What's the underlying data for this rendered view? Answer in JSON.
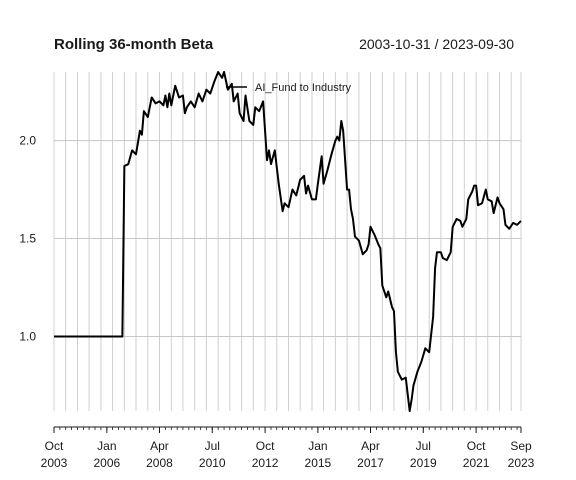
{
  "chart_data": {
    "type": "line",
    "title": "Rolling 36-month Beta",
    "date_range": "2003-10-31 / 2023-09-30",
    "xlabel": "",
    "ylabel": "",
    "xlim": [
      "2003-10-31",
      "2023-09-30"
    ],
    "ylim": [
      0.62,
      2.35
    ],
    "grid": true,
    "legend_position": "top-center",
    "y_ticks": [
      1.0,
      1.5,
      2.0
    ],
    "y_tick_labels": [
      "1.0",
      "1.5",
      "2.0"
    ],
    "x_ticks": [
      {
        "date": "2003-10-31",
        "label": [
          "Oct",
          "2003"
        ]
      },
      {
        "date": "2006-01-31",
        "label": [
          "Jan",
          "2006"
        ]
      },
      {
        "date": "2008-04-30",
        "label": [
          "Apr",
          "2008"
        ]
      },
      {
        "date": "2010-07-31",
        "label": [
          "Jul",
          "2010"
        ]
      },
      {
        "date": "2012-10-31",
        "label": [
          "Oct",
          "2012"
        ]
      },
      {
        "date": "2015-01-31",
        "label": [
          "Jan",
          "2015"
        ]
      },
      {
        "date": "2017-04-30",
        "label": [
          "Apr",
          "2017"
        ]
      },
      {
        "date": "2019-07-31",
        "label": [
          "Jul",
          "2019"
        ]
      },
      {
        "date": "2021-10-31",
        "label": [
          "Oct",
          "2021"
        ]
      },
      {
        "date": "2023-09-30",
        "label": [
          "Sep",
          "2023"
        ]
      }
    ],
    "series": [
      {
        "name": "AI_Fund to Industry",
        "color": "#000000",
        "points": [
          [
            "2003-10-31",
            1.0
          ],
          [
            "2006-09-30",
            1.0
          ],
          [
            "2006-10-31",
            1.87
          ],
          [
            "2006-12-31",
            1.88
          ],
          [
            "2007-02-28",
            1.95
          ],
          [
            "2007-04-30",
            1.93
          ],
          [
            "2007-06-30",
            2.05
          ],
          [
            "2007-07-31",
            2.03
          ],
          [
            "2007-08-31",
            2.15
          ],
          [
            "2007-10-31",
            2.12
          ],
          [
            "2007-12-31",
            2.22
          ],
          [
            "2008-02-29",
            2.19
          ],
          [
            "2008-04-30",
            2.2
          ],
          [
            "2008-06-30",
            2.18
          ],
          [
            "2008-07-31",
            2.23
          ],
          [
            "2008-08-31",
            2.17
          ],
          [
            "2008-09-30",
            2.24
          ],
          [
            "2008-10-31",
            2.18
          ],
          [
            "2008-12-31",
            2.28
          ],
          [
            "2009-02-28",
            2.22
          ],
          [
            "2009-04-30",
            2.23
          ],
          [
            "2009-05-31",
            2.14
          ],
          [
            "2009-06-30",
            2.17
          ],
          [
            "2009-08-31",
            2.2
          ],
          [
            "2009-10-31",
            2.17
          ],
          [
            "2009-12-31",
            2.24
          ],
          [
            "2010-02-28",
            2.2
          ],
          [
            "2010-04-30",
            2.26
          ],
          [
            "2010-06-30",
            2.24
          ],
          [
            "2010-08-31",
            2.3
          ],
          [
            "2010-10-31",
            2.35
          ],
          [
            "2010-12-31",
            2.32
          ],
          [
            "2011-01-31",
            2.35
          ],
          [
            "2011-03-31",
            2.26
          ],
          [
            "2011-05-31",
            2.29
          ],
          [
            "2011-06-30",
            2.2
          ],
          [
            "2011-08-31",
            2.24
          ],
          [
            "2011-09-30",
            2.14
          ],
          [
            "2011-11-30",
            2.1
          ],
          [
            "2011-12-31",
            2.23
          ],
          [
            "2012-02-29",
            2.1
          ],
          [
            "2012-04-30",
            2.08
          ],
          [
            "2012-05-31",
            2.17
          ],
          [
            "2012-07-31",
            2.15
          ],
          [
            "2012-09-30",
            2.2
          ],
          [
            "2012-11-30",
            1.9
          ],
          [
            "2012-12-31",
            1.95
          ],
          [
            "2013-01-31",
            1.88
          ],
          [
            "2013-03-31",
            1.95
          ],
          [
            "2013-05-31",
            1.78
          ],
          [
            "2013-07-31",
            1.64
          ],
          [
            "2013-08-31",
            1.68
          ],
          [
            "2013-10-31",
            1.66
          ],
          [
            "2013-12-31",
            1.75
          ],
          [
            "2014-02-28",
            1.72
          ],
          [
            "2014-04-30",
            1.8
          ],
          [
            "2014-06-30",
            1.82
          ],
          [
            "2014-07-31",
            1.73
          ],
          [
            "2014-08-31",
            1.77
          ],
          [
            "2014-10-31",
            1.7
          ],
          [
            "2014-12-31",
            1.7
          ],
          [
            "2015-01-31",
            1.78
          ],
          [
            "2015-03-31",
            1.92
          ],
          [
            "2015-04-30",
            1.78
          ],
          [
            "2015-06-30",
            1.85
          ],
          [
            "2015-08-31",
            1.93
          ],
          [
            "2015-10-31",
            2.0
          ],
          [
            "2015-11-30",
            2.02
          ],
          [
            "2015-12-31",
            2.0
          ],
          [
            "2016-01-31",
            2.1
          ],
          [
            "2016-02-29",
            2.05
          ],
          [
            "2016-04-30",
            1.75
          ],
          [
            "2016-05-31",
            1.75
          ],
          [
            "2016-06-30",
            1.65
          ],
          [
            "2016-07-31",
            1.6
          ],
          [
            "2016-08-31",
            1.51
          ],
          [
            "2016-10-31",
            1.49
          ],
          [
            "2016-12-31",
            1.42
          ],
          [
            "2017-02-28",
            1.44
          ],
          [
            "2017-03-31",
            1.47
          ],
          [
            "2017-04-30",
            1.56
          ],
          [
            "2017-06-30",
            1.52
          ],
          [
            "2017-08-31",
            1.47
          ],
          [
            "2017-09-30",
            1.45
          ],
          [
            "2017-10-31",
            1.26
          ],
          [
            "2017-12-31",
            1.2
          ],
          [
            "2018-01-31",
            1.23
          ],
          [
            "2018-03-31",
            1.15
          ],
          [
            "2018-04-30",
            1.13
          ],
          [
            "2018-05-31",
            0.92
          ],
          [
            "2018-06-30",
            0.82
          ],
          [
            "2018-08-31",
            0.78
          ],
          [
            "2018-10-31",
            0.79
          ],
          [
            "2018-12-31",
            0.62
          ],
          [
            "2019-01-31",
            0.68
          ],
          [
            "2019-02-28",
            0.75
          ],
          [
            "2019-04-30",
            0.82
          ],
          [
            "2019-06-30",
            0.87
          ],
          [
            "2019-08-31",
            0.94
          ],
          [
            "2019-10-31",
            0.92
          ],
          [
            "2019-12-31",
            1.1
          ],
          [
            "2020-01-31",
            1.35
          ],
          [
            "2020-02-29",
            1.43
          ],
          [
            "2020-04-30",
            1.43
          ],
          [
            "2020-05-31",
            1.4
          ],
          [
            "2020-07-31",
            1.39
          ],
          [
            "2020-09-30",
            1.43
          ],
          [
            "2020-10-31",
            1.56
          ],
          [
            "2020-11-30",
            1.58
          ],
          [
            "2020-12-31",
            1.6
          ],
          [
            "2021-02-28",
            1.59
          ],
          [
            "2021-03-31",
            1.56
          ],
          [
            "2021-05-31",
            1.6
          ],
          [
            "2021-06-30",
            1.7
          ],
          [
            "2021-08-31",
            1.74
          ],
          [
            "2021-09-30",
            1.77
          ],
          [
            "2021-10-31",
            1.77
          ],
          [
            "2021-11-30",
            1.67
          ],
          [
            "2022-01-31",
            1.68
          ],
          [
            "2022-03-31",
            1.75
          ],
          [
            "2022-04-30",
            1.7
          ],
          [
            "2022-06-30",
            1.69
          ],
          [
            "2022-07-31",
            1.63
          ],
          [
            "2022-09-30",
            1.71
          ],
          [
            "2022-10-31",
            1.68
          ],
          [
            "2022-12-31",
            1.65
          ],
          [
            "2023-01-31",
            1.57
          ],
          [
            "2023-03-31",
            1.55
          ],
          [
            "2023-05-31",
            1.58
          ],
          [
            "2023-07-31",
            1.57
          ],
          [
            "2023-09-30",
            1.59
          ]
        ]
      }
    ]
  }
}
